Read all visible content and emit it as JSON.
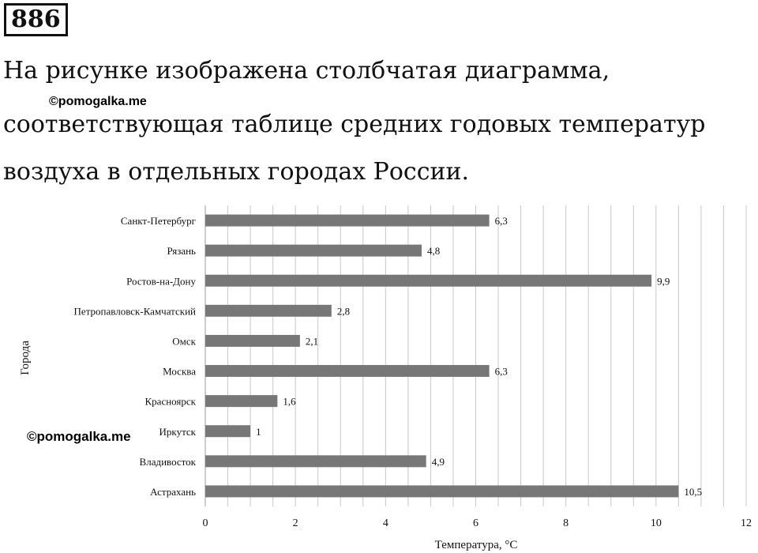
{
  "problem": {
    "number": "886",
    "lines": [
      "На рисунке изображена столбчатая диаграмма,",
      "соответствующая таблице средних годовых температур",
      "воздуха в отдельных городах России."
    ]
  },
  "watermarks": [
    "©pomogalka.me",
    "©pomogalka.me"
  ],
  "chart_data": {
    "type": "bar",
    "orientation": "horizontal",
    "categories": [
      "Санкт-Петербург",
      "Рязань",
      "Ростов-на-Дону",
      "Петропавловск-Камчатский",
      "Омск",
      "Москва",
      "Красноярск",
      "Иркутск",
      "Владивосток",
      "Астрахань"
    ],
    "values": [
      6.3,
      4.8,
      9.9,
      2.8,
      2.1,
      6.3,
      1.6,
      1,
      4.9,
      10.5
    ],
    "value_labels": [
      "6,3",
      "4,8",
      "9,9",
      "2,8",
      "2,1",
      "6,3",
      "1,6",
      "1",
      "4,9",
      "10,5"
    ],
    "xlabel": "Температура, °С",
    "ylabel": "Города",
    "xlim": [
      0,
      12
    ],
    "xticks": [
      0,
      2,
      4,
      6,
      8,
      10,
      12
    ],
    "minor_step": 0.5,
    "grid": "vertical",
    "bar_color": "#777777",
    "grid_color": "#c8c8c8"
  }
}
